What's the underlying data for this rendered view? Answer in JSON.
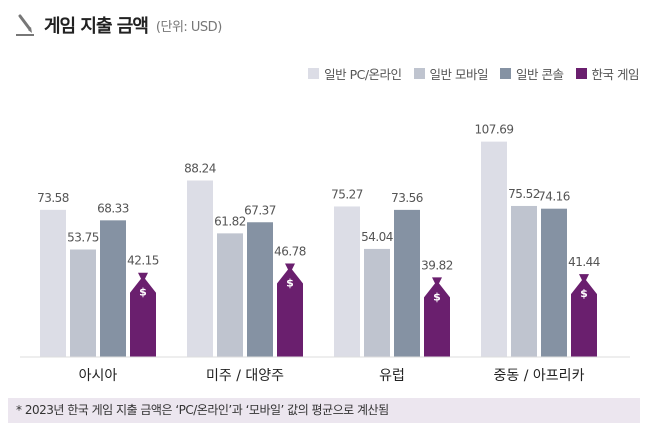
{
  "title": "게임 지출 금액",
  "unit": "(단위: USD)",
  "footer": "* 2023년 한국 게임 지출 금액은 ‘PC/온라인’과 ‘모바일’ 값의 평균으로 계산됨",
  "chart_data": {
    "type": "bar",
    "title": "게임 지출 금액",
    "categories": [
      "아시아",
      "미주 / 대양주",
      "유럽",
      "중동 / 아프리카"
    ],
    "series": [
      {
        "name": "일반 PC/온라인",
        "color": "#dcdde6",
        "values": [
          73.58,
          88.24,
          75.27,
          107.69
        ]
      },
      {
        "name": "일반 모바일",
        "color": "#bfc4cf",
        "values": [
          53.75,
          61.82,
          54.04,
          75.52
        ]
      },
      {
        "name": "일반 콘솔",
        "color": "#8592a3",
        "values": [
          68.33,
          67.37,
          73.56,
          74.16
        ]
      },
      {
        "name": "한국 게임",
        "color": "#6a1f6e",
        "values": [
          42.15,
          46.78,
          39.82,
          41.44
        ]
      }
    ],
    "ylim": [
      0,
      110
    ],
    "legend": "top-right",
    "grid": false
  }
}
